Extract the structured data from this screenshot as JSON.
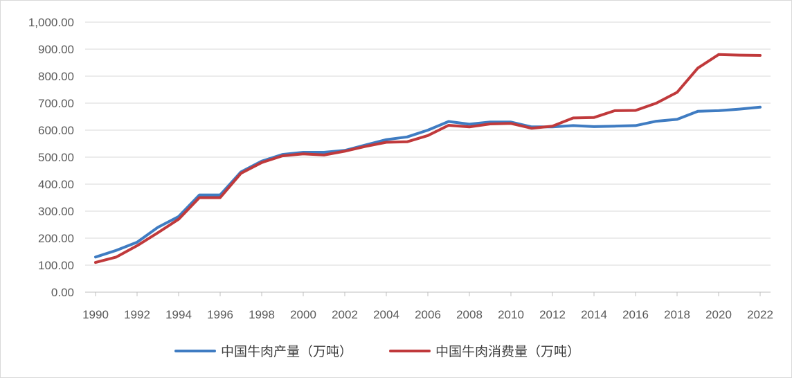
{
  "chart_data": {
    "type": "line",
    "x": [
      1990,
      1991,
      1992,
      1993,
      1994,
      1995,
      1996,
      1997,
      1998,
      1999,
      2000,
      2001,
      2002,
      2003,
      2004,
      2005,
      2006,
      2007,
      2008,
      2009,
      2010,
      2011,
      2012,
      2013,
      2014,
      2015,
      2016,
      2017,
      2018,
      2019,
      2020,
      2021,
      2022
    ],
    "x_tick_labels": [
      "1990",
      "1992",
      "1994",
      "1996",
      "1998",
      "2000",
      "2002",
      "2004",
      "2006",
      "2008",
      "2010",
      "2012",
      "2014",
      "2016",
      "2018",
      "2020",
      "2022"
    ],
    "y_tick_labels": [
      "0.00",
      "100.00",
      "200.00",
      "300.00",
      "400.00",
      "500.00",
      "600.00",
      "700.00",
      "800.00",
      "900.00",
      "1,000.00"
    ],
    "ylim": [
      0,
      1000
    ],
    "grid": true,
    "legend_position": "bottom",
    "series": [
      {
        "name": "中国牛肉产量（万吨）",
        "color": "#3f7cc2",
        "values": [
          130,
          155,
          185,
          240,
          280,
          360,
          360,
          445,
          485,
          510,
          518,
          518,
          525,
          545,
          565,
          575,
          600,
          632,
          622,
          630,
          630,
          612,
          612,
          617,
          613,
          615,
          617,
          633,
          640,
          670,
          672,
          678,
          685
        ]
      },
      {
        "name": "中国牛肉消费量（万吨）",
        "color": "#c0393b",
        "values": [
          110,
          130,
          172,
          220,
          270,
          350,
          350,
          440,
          480,
          505,
          512,
          508,
          522,
          540,
          555,
          557,
          580,
          618,
          612,
          623,
          625,
          607,
          615,
          645,
          647,
          672,
          673,
          700,
          740,
          830,
          880,
          878,
          877
        ]
      }
    ]
  }
}
